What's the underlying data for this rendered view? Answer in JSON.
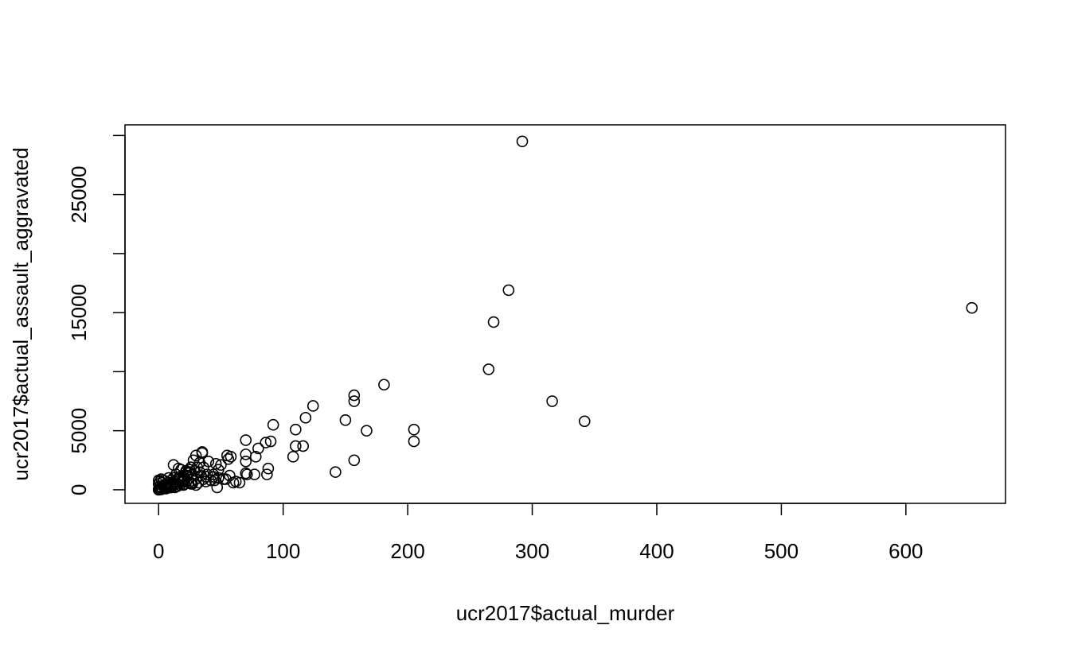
{
  "chart_data": {
    "type": "scatter",
    "title": "",
    "xlabel": "ucr2017$actual_murder",
    "ylabel": "ucr2017$actual_assault_aggravated",
    "xlim": [
      -27,
      680
    ],
    "ylim": [
      -1150,
      30900
    ],
    "x_ticks": [
      0,
      100,
      200,
      300,
      400,
      500,
      600
    ],
    "x_tick_labels": [
      "0",
      "100",
      "200",
      "300",
      "400",
      "500",
      "600"
    ],
    "y_ticks": [
      0,
      5000,
      10000,
      15000,
      20000,
      25000,
      30000
    ],
    "y_tick_labels": [
      "0",
      "5000",
      "",
      "15000",
      "",
      "25000",
      ""
    ],
    "grid": false,
    "legend": "none",
    "marker": "open-circle",
    "series": [
      {
        "x": [
          292,
          281,
          269,
          265,
          653,
          316,
          342,
          205,
          205,
          181,
          157,
          157,
          167,
          150,
          124,
          118,
          110,
          116,
          110,
          108,
          92,
          90,
          86,
          80,
          78,
          70,
          70,
          70,
          71,
          157,
          142,
          88,
          87,
          77,
          70,
          65,
          60,
          55,
          56,
          58,
          35,
          35,
          46,
          50,
          48,
          44,
          40,
          38,
          36,
          33,
          30,
          28,
          26,
          25,
          24,
          22,
          20,
          18,
          16,
          14,
          12,
          10,
          8,
          6,
          4,
          2,
          1,
          0,
          0,
          1,
          3,
          5,
          7,
          9,
          11,
          13,
          15,
          17,
          19,
          21,
          23,
          25,
          27,
          29,
          31,
          33,
          12,
          16,
          22,
          18,
          8,
          4,
          2,
          0,
          1,
          3,
          10,
          14,
          20,
          26,
          30,
          36,
          42,
          48,
          52,
          57,
          47,
          44,
          39,
          34,
          30,
          27,
          24,
          21,
          19,
          17,
          15,
          13,
          11,
          9,
          7,
          5,
          3,
          1,
          0,
          2,
          6,
          10,
          14,
          20,
          26,
          32,
          38,
          45,
          54,
          62
        ],
        "y": [
          29500,
          16900,
          14200,
          10200,
          15400,
          7500,
          5800,
          5100,
          4100,
          8900,
          8000,
          7500,
          5000,
          5900,
          7100,
          6100,
          5100,
          3700,
          3700,
          2800,
          5500,
          4100,
          4000,
          3500,
          2800,
          4200,
          3000,
          2400,
          1300,
          2500,
          1500,
          1800,
          1300,
          1300,
          1400,
          600,
          600,
          2900,
          2600,
          2800,
          3200,
          3100,
          2200,
          2100,
          1700,
          1300,
          2400,
          1100,
          1900,
          1500,
          2900,
          2500,
          1900,
          1700,
          1400,
          1500,
          1200,
          1000,
          900,
          1300,
          1000,
          800,
          600,
          400,
          300,
          200,
          100,
          0,
          500,
          700,
          600,
          400,
          300,
          500,
          400,
          700,
          900,
          1100,
          800,
          900,
          1200,
          1500,
          1300,
          1600,
          1900,
          2300,
          2100,
          1800,
          1600,
          1700,
          1000,
          800,
          900,
          800,
          300,
          100,
          200,
          500,
          700,
          600,
          400,
          900,
          800,
          1000,
          900,
          1200,
          200,
          1100,
          1300,
          1200,
          900,
          500,
          600,
          500,
          700,
          400,
          300,
          200,
          300,
          200,
          200,
          150,
          100,
          50,
          30,
          20,
          100,
          200,
          300,
          400,
          500,
          600,
          700,
          800,
          900,
          700
        ]
      }
    ]
  }
}
